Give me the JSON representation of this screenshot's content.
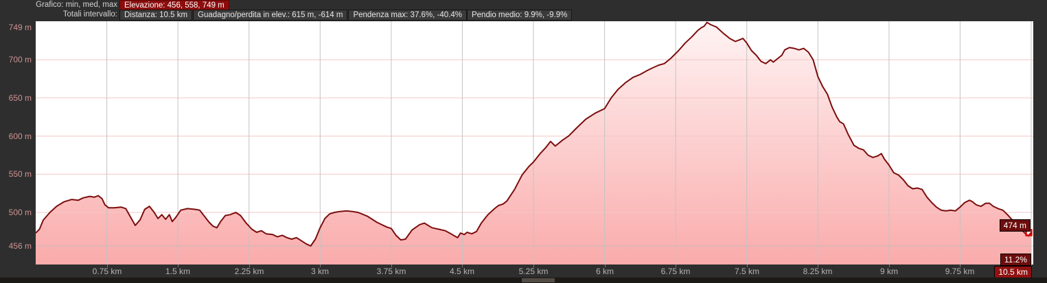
{
  "header": {
    "row1_label": "Grafico: min, med, max",
    "elevation_badge": "Elevazione: 456, 558, 749 m",
    "row2_label": "Totali intervallo:",
    "stats": [
      "Distanza: 10.5 km",
      "Guadagno/perdita in elev.: 615 m, -614 m",
      "Pendenza max: 37.6%, -40.4%",
      "Pendio medio: 9.9%, -9.9%"
    ]
  },
  "overlays": {
    "end_elevation": "474 m",
    "end_grade": "11.2%",
    "end_distance": "10.5 km"
  },
  "colors": {
    "page_bg": "#2e2e2e",
    "plot_bg": "#ffffff",
    "line": "#7b0d0d",
    "fill_top": "#fff3f3",
    "fill_bottom": "#faabab",
    "v_grid": "#c3c3c3",
    "h_grid": "#f6c6c6",
    "min_grid": "#c6bcb8",
    "y_label": "#d09393",
    "x_label": "#b3b3b3",
    "badge_red": "#8b0d0d",
    "end_marker": "#e00000"
  },
  "chart_data": {
    "type": "area",
    "title": "",
    "xlabel": "",
    "ylabel": "",
    "x_unit": "km",
    "y_unit": "m",
    "xlim": [
      0,
      10.5
    ],
    "ylim": [
      433,
      757
    ],
    "grid": true,
    "x_ticks": [
      0.75,
      1.5,
      2.25,
      3,
      3.75,
      4.5,
      5.25,
      6,
      6.75,
      7.5,
      8.25,
      9,
      9.75,
      10.5
    ],
    "x_tick_labels": [
      "0.75 km",
      "1.5 km",
      "2.25 km",
      "3 km",
      "3.75 km",
      "4.5 km",
      "5.25 km",
      "6 km",
      "6.75 km",
      "7.5 km",
      "8.25 km",
      "9 km",
      "9.75 km",
      "10.5 km"
    ],
    "y_ticks": [
      456,
      500,
      550,
      600,
      650,
      700,
      749
    ],
    "y_tick_labels": [
      "456 m",
      "500 m",
      "550 m",
      "600 m",
      "650 m",
      "700 m",
      "749 m"
    ],
    "elevation_min_med_max": [
      456,
      558,
      749
    ],
    "total_distance_km": 10.5,
    "elevation_gain_loss_m": [
      615,
      -614
    ],
    "max_grade_pct": [
      37.6,
      -40.4
    ],
    "avg_grade_pct": [
      9.9,
      -9.9
    ],
    "end_point": {
      "x": 10.5,
      "y": 474,
      "grade_pct": 11.2
    },
    "series": [
      {
        "name": "Elevazione",
        "x": [
          0.0,
          0.04,
          0.08,
          0.15,
          0.22,
          0.3,
          0.38,
          0.45,
          0.5,
          0.57,
          0.62,
          0.66,
          0.7,
          0.73,
          0.77,
          0.83,
          0.9,
          0.95,
          1.0,
          1.05,
          1.1,
          1.15,
          1.2,
          1.25,
          1.29,
          1.33,
          1.37,
          1.41,
          1.44,
          1.48,
          1.53,
          1.6,
          1.68,
          1.73,
          1.78,
          1.83,
          1.87,
          1.91,
          1.95,
          2.0,
          2.05,
          2.11,
          2.16,
          2.22,
          2.28,
          2.33,
          2.38,
          2.43,
          2.5,
          2.55,
          2.6,
          2.65,
          2.7,
          2.75,
          2.8,
          2.85,
          2.9,
          2.95,
          3.0,
          3.05,
          3.1,
          3.15,
          3.2,
          3.28,
          3.35,
          3.4,
          3.5,
          3.6,
          3.7,
          3.75,
          3.8,
          3.85,
          3.9,
          3.97,
          4.05,
          4.1,
          4.18,
          4.25,
          4.32,
          4.38,
          4.42,
          4.45,
          4.48,
          4.52,
          4.55,
          4.6,
          4.65,
          4.7,
          4.77,
          4.84,
          4.88,
          4.93,
          4.97,
          5.05,
          5.13,
          5.2,
          5.25,
          5.32,
          5.38,
          5.43,
          5.48,
          5.52,
          5.56,
          5.62,
          5.7,
          5.8,
          5.9,
          6.0,
          6.07,
          6.14,
          6.22,
          6.3,
          6.38,
          6.45,
          6.5,
          6.57,
          6.63,
          6.7,
          6.78,
          6.85,
          6.92,
          6.98,
          7.02,
          7.05,
          7.08,
          7.12,
          7.18,
          7.25,
          7.32,
          7.38,
          7.42,
          7.46,
          7.5,
          7.55,
          7.6,
          7.65,
          7.7,
          7.75,
          7.78,
          7.82,
          7.87,
          7.9,
          7.95,
          8.0,
          8.05,
          8.1,
          8.15,
          8.2,
          8.25,
          8.3,
          8.35,
          8.4,
          8.45,
          8.48,
          8.52,
          8.57,
          8.63,
          8.68,
          8.73,
          8.78,
          8.83,
          8.88,
          8.92,
          8.95,
          9.0,
          9.05,
          9.1,
          9.15,
          9.2,
          9.25,
          9.3,
          9.35,
          9.4,
          9.45,
          9.5,
          9.55,
          9.6,
          9.65,
          9.7,
          9.75,
          9.8,
          9.85,
          9.88,
          9.92,
          9.97,
          10.02,
          10.06,
          10.1,
          10.15,
          10.2,
          10.25,
          10.3,
          10.35,
          10.4,
          10.44,
          10.47,
          10.5
        ],
        "y": [
          473,
          478,
          490,
          500,
          508,
          514,
          517,
          516,
          519,
          521,
          520,
          522,
          518,
          510,
          506,
          506,
          507,
          505,
          494,
          483,
          490,
          504,
          508,
          500,
          492,
          497,
          491,
          497,
          488,
          494,
          503,
          505,
          504,
          503,
          495,
          487,
          482,
          480,
          488,
          496,
          497,
          500,
          496,
          486,
          478,
          474,
          476,
          472,
          471,
          468,
          470,
          467,
          465,
          467,
          463,
          459,
          456,
          465,
          480,
          492,
          498,
          500,
          501,
          502,
          501,
          500,
          495,
          487,
          481,
          479,
          470,
          464,
          465,
          477,
          484,
          486,
          480,
          478,
          476,
          472,
          469,
          467,
          473,
          471,
          474,
          472,
          475,
          486,
          497,
          505,
          509,
          511,
          515,
          530,
          549,
          560,
          566,
          577,
          585,
          593,
          587,
          591,
          595,
          600,
          610,
          622,
          630,
          636,
          650,
          661,
          670,
          677,
          681,
          686,
          689,
          693,
          695,
          702,
          712,
          722,
          730,
          738,
          742,
          744,
          749,
          746,
          743,
          735,
          728,
          724,
          726,
          728,
          722,
          712,
          706,
          698,
          695,
          700,
          697,
          701,
          706,
          713,
          716,
          715,
          713,
          715,
          710,
          700,
          678,
          665,
          655,
          638,
          625,
          619,
          616,
          602,
          588,
          584,
          582,
          575,
          572,
          574,
          577,
          570,
          562,
          552,
          549,
          543,
          535,
          531,
          532,
          530,
          520,
          513,
          507,
          503,
          502,
          503,
          502,
          507,
          513,
          516,
          514,
          510,
          508,
          512,
          512,
          508,
          505,
          503,
          497,
          490,
          484,
          477,
          472,
          469,
          474
        ]
      }
    ]
  }
}
